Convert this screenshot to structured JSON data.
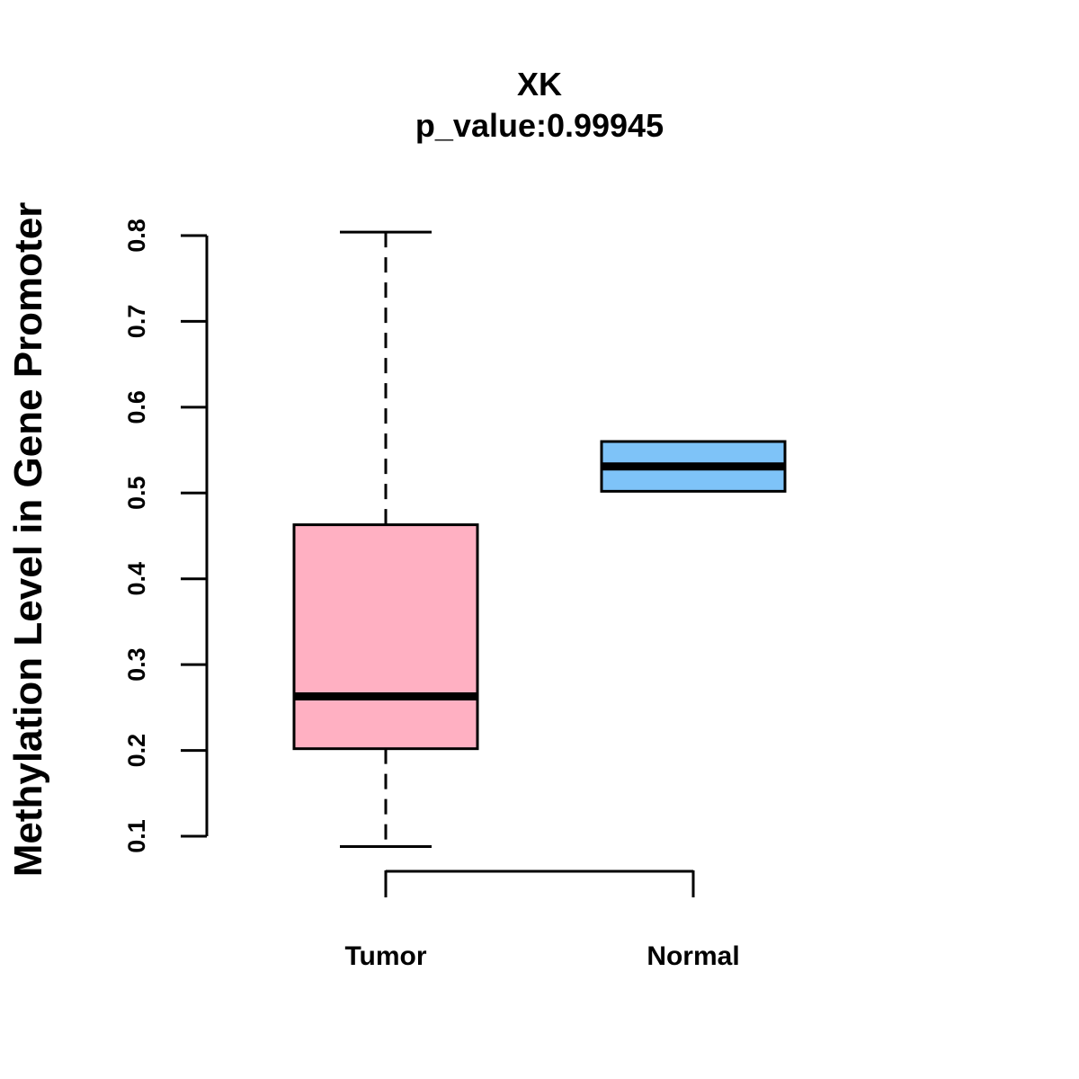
{
  "chart_data": {
    "type": "boxplot",
    "title": "XK",
    "subtitle": "p_value:0.99945",
    "ylabel": "Methylation Level in Gene Promoter",
    "xlabel": "",
    "ylim": [
      0.1,
      0.8
    ],
    "yticks": [
      0.1,
      0.2,
      0.3,
      0.4,
      0.5,
      0.6,
      0.7,
      0.8
    ],
    "ytick_labels": [
      "0.1",
      "0.2",
      "0.3",
      "0.4",
      "0.5",
      "0.6",
      "0.7",
      "0.8"
    ],
    "categories": [
      "Tumor",
      "Normal"
    ],
    "boxes": [
      {
        "name": "Tumor",
        "min": 0.088,
        "q1": 0.202,
        "median": 0.263,
        "q3": 0.463,
        "max": 0.804,
        "color": "#FFB0C2"
      },
      {
        "name": "Normal",
        "min": 0.502,
        "q1": 0.502,
        "median": 0.531,
        "q3": 0.56,
        "max": 0.56,
        "color": "#7EC3F8"
      }
    ],
    "grid": false,
    "legend": "none"
  }
}
